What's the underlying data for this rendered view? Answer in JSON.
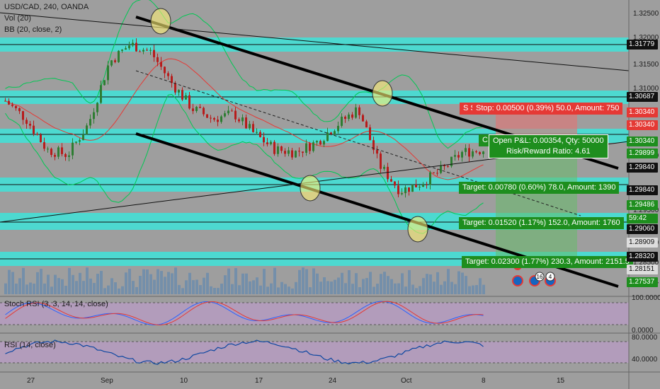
{
  "legend": {
    "symbol": "USD/CAD, 240, OANDA",
    "vol": "Vol (20)",
    "bb": "BB (20, close, 2)",
    "stoch": "Stoch RSI (3, 3, 14, 14, close)",
    "rsi": "RSI (14, close)"
  },
  "orders": {
    "stop": "Stop: 0.00500 (0.39%) 50.0, Amount: 750",
    "stop_prefix": "S S",
    "pnl": "Open P&L: 0.00354, Qty: 50000",
    "rr": "Risk/Reward Ratio: 4.61",
    "pnl_prefix": "C C",
    "target1": "Target: 0.00780 (0.60%) 78.0, Amount: 1390",
    "target2": "Target: 0.01520 (1.17%) 152.0, Amount: 1760",
    "target3": "Target: 0.02300 (1.77%) 230.3, Amount: 2151.5"
  },
  "event_badges": [
    "16",
    "4"
  ],
  "price_axis": {
    "ticks": [
      "1.32500",
      "1.32000",
      "1.31500",
      "1.31000",
      "1.30000",
      "1.29500",
      "1.29000",
      "1.28500",
      "1.27537"
    ],
    "labels": [
      {
        "text": "1.31779",
        "kind": "level"
      },
      {
        "text": "1.30687",
        "kind": "level"
      },
      {
        "text": "1.30340",
        "kind": "stop"
      },
      {
        "text": "1.30340",
        "kind": "stop"
      },
      {
        "text": "1.30340",
        "kind": "pnl"
      },
      {
        "text": "1.29899",
        "kind": "last"
      },
      {
        "text": "1.29840",
        "kind": "level"
      },
      {
        "text": "1.29840",
        "kind": "level"
      },
      {
        "text": "1.29486",
        "kind": "target"
      },
      {
        "text": "59:42",
        "kind": "target"
      },
      {
        "text": "1.29060",
        "kind": "level"
      },
      {
        "text": "1.28909",
        "kind": "plain"
      },
      {
        "text": "1.28320",
        "kind": "level"
      },
      {
        "text": "1.28151",
        "kind": "plain"
      },
      {
        "text": "1.27537",
        "kind": "target"
      }
    ],
    "stoch_ticks": [
      "100.0000",
      "0.0000"
    ],
    "rsi_ticks": [
      "80.0000",
      "40.0000"
    ]
  },
  "time_axis": [
    "27",
    "Sep",
    "10",
    "17",
    "24",
    "Oct",
    "8",
    "15"
  ],
  "colors": {
    "background": "#9e9e9e",
    "level_band": "#4dd9d0",
    "candle_up": "#2e7d32",
    "candle_down": "#b71c1c",
    "bb_upper": "#00c853",
    "bb_basis": "#e53935",
    "stop": "#e53935",
    "target": "#1e8e1e",
    "stoch_k": "#2962ff",
    "stoch_d": "#e53935",
    "rsi_line": "#0d47a1"
  },
  "chart_data": {
    "type": "candlestick",
    "title": "USD/CAD, 240, OANDA",
    "ylim": [
      1.272,
      1.327
    ],
    "x": [
      "Aug 27",
      "Sep",
      "Sep 10",
      "Sep 17",
      "Sep 24",
      "Oct",
      "Oct 8",
      "Oct 15"
    ],
    "close_series_approx": [
      1.3085,
      1.305,
      1.299,
      1.298,
      1.304,
      1.316,
      1.3195,
      1.318,
      1.312,
      1.307,
      1.305,
      1.306,
      1.302,
      1.299,
      1.2985,
      1.3005,
      1.304,
      1.307,
      1.296,
      1.291,
      1.2925,
      1.295,
      1.2985,
      1.299
    ],
    "horizontal_levels": [
      1.31779,
      1.30687,
      1.3034,
      1.2984,
      1.2906,
      1.2832
    ],
    "stoch_rsi_range": [
      0,
      100
    ],
    "rsi_range": [
      40,
      80
    ]
  }
}
